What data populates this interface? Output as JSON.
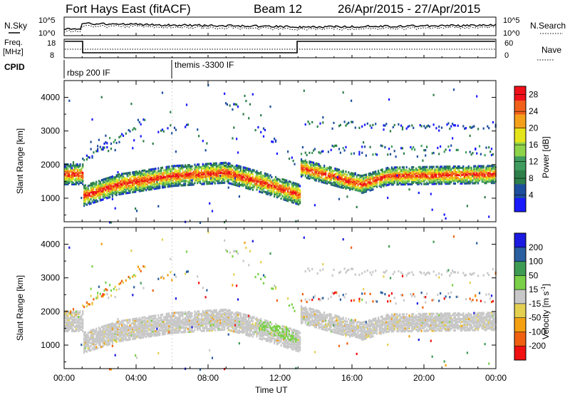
{
  "header": {
    "radar": "Fort Hays East (fitACF)",
    "beam": "Beam 12",
    "dates": "26/Apr/2015 - 27/Apr/2015"
  },
  "labels": {
    "nsky": "N.Sky",
    "nsearch": "N.Search",
    "freq": "Freq.",
    "freq_unit": "[MHz]",
    "nave": "Nave",
    "cpid": "CPID",
    "xlabel": "Time UT",
    "ylabel": "Slant Range [km]",
    "power_label": "Power [dB]",
    "velocity_label": "Velocity [m s",
    "velocity_exp": "-1",
    "velocity_close": "]"
  },
  "noise_axis": {
    "left_top": "10^5",
    "left_bottom": "10^0",
    "right_top": "10^5",
    "right_bottom": "10^0"
  },
  "freq_axis": {
    "left_top": "18",
    "left_bottom": "8",
    "right_top": "60",
    "right_bottom": "0"
  },
  "cpid": [
    {
      "label": "rbsp 200 IF",
      "start_hour": 0
    },
    {
      "label": "themis -3300 IF",
      "start_hour": 6
    }
  ],
  "colors": {
    "power": [
      "#1a1aff",
      "#1e4f9e",
      "#2e7f4a",
      "#3f9b5e",
      "#8fd34a",
      "#e4e41a",
      "#f5a01a",
      "#f0601a",
      "#f0101a"
    ],
    "velocity": [
      "#f01010",
      "#f06010",
      "#f5a010",
      "#e4d050",
      "#c8c8c8",
      "#7ad048",
      "#3e9b54",
      "#2a5fa0",
      "#1a1ae0"
    ]
  },
  "chart_data": [
    {
      "type": "heatmap",
      "title": "Power",
      "xlabel": "Time UT",
      "ylabel": "Slant Range [km]",
      "x_ticks": [
        "00:00",
        "04:00",
        "08:00",
        "12:00",
        "16:00",
        "20:00",
        "00:00"
      ],
      "xlim": [
        0,
        24
      ],
      "y_ticks": [
        1000,
        2000,
        3000,
        4000
      ],
      "ylim": [
        300,
        4500
      ],
      "colorbar": {
        "label": "Power [dB]",
        "ticks": [
          4,
          8,
          12,
          16,
          20,
          24,
          28
        ],
        "range": [
          0,
          30
        ]
      },
      "main_band_center_km": [
        [
          1.0,
          1100
        ],
        [
          3.0,
          1450
        ],
        [
          6.0,
          1700
        ],
        [
          9.0,
          1800
        ],
        [
          11.0,
          1500
        ],
        [
          13.0,
          1150
        ],
        [
          13.1,
          1950
        ],
        [
          16.5,
          1450
        ],
        [
          18.0,
          1700
        ],
        [
          24.0,
          1750
        ]
      ]
    },
    {
      "type": "heatmap",
      "title": "Velocity",
      "xlabel": "Time UT",
      "ylabel": "Slant Range [km]",
      "x_ticks": [
        "00:00",
        "04:00",
        "08:00",
        "12:00",
        "16:00",
        "20:00",
        "00:00"
      ],
      "xlim": [
        0,
        24
      ],
      "y_ticks": [
        1000,
        2000,
        3000,
        4000
      ],
      "ylim": [
        300,
        4500
      ],
      "colorbar": {
        "label": "Velocity [m s-1]",
        "ticks": [
          -200,
          -100,
          -50,
          -15,
          15,
          50,
          100,
          200
        ],
        "range": [
          -250,
          250
        ]
      }
    }
  ]
}
